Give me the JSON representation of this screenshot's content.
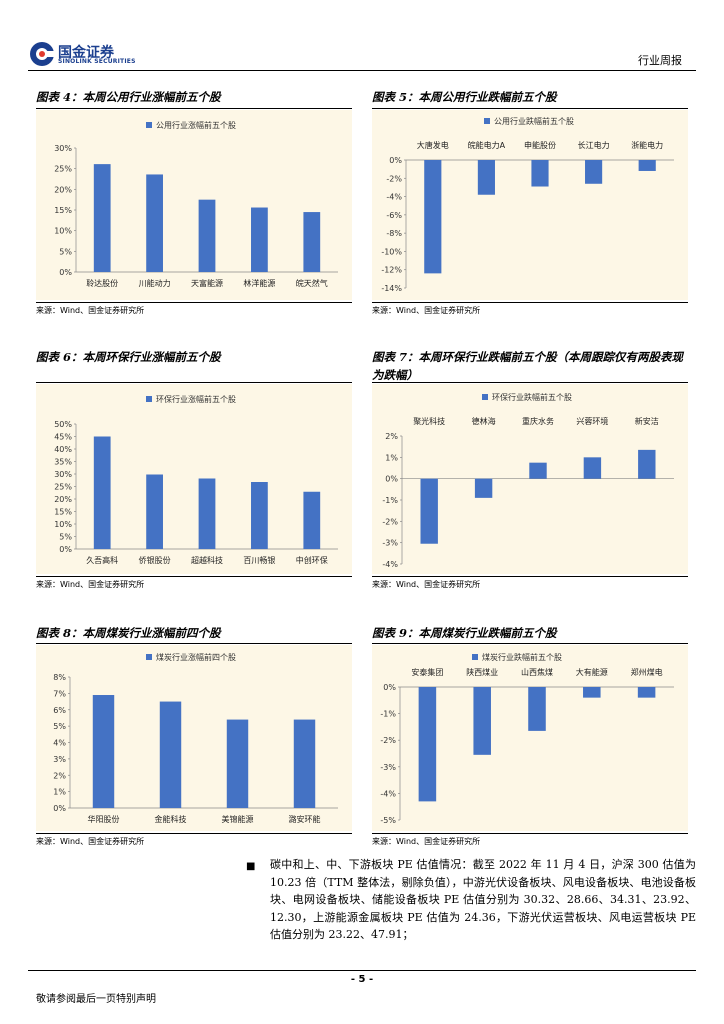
{
  "header": {
    "brand_cn": "国金证券",
    "brand_en": "SINOLINK SECURITIES",
    "doc_type": "行业周报"
  },
  "figures": [
    {
      "title": "图表 4：本周公用行业涨幅前五个股",
      "source": "来源：Wind、国金证券研究所"
    },
    {
      "title": "图表 5：本周公用行业跌幅前五个股",
      "source": "来源：Wind、国金证券研究所"
    },
    {
      "title": "图表 6：本周环保行业涨幅前五个股",
      "source": "来源：Wind、国金证券研究所"
    },
    {
      "title": "图表 7：本周环保行业跌幅前五个股（本周跟踪仅有两股表现为跌幅）",
      "source": "来源：Wind、国金证券研究所"
    },
    {
      "title": "图表 8：本周煤炭行业涨幅前四个股",
      "source": "来源：Wind、国金证券研究所"
    },
    {
      "title": "图表 9：本周煤炭行业跌幅前五个股",
      "source": "来源：Wind、国金证券研究所"
    }
  ],
  "chart_data": [
    {
      "type": "bar",
      "legend": "公用行业涨幅前五个股",
      "categories": [
        "聆达股份",
        "川能动力",
        "天富能源",
        "林洋能源",
        "皖天然气"
      ],
      "values": [
        26.1,
        23.6,
        17.5,
        15.6,
        14.5
      ],
      "ylim": [
        0,
        30
      ],
      "ticks": [
        0,
        5,
        10,
        15,
        20,
        25,
        30
      ],
      "tick_labels": [
        "0%",
        "5%",
        "10%",
        "15%",
        "20%",
        "25%",
        "30%"
      ],
      "color": "#4472c4"
    },
    {
      "type": "bar",
      "legend": "公用行业跌幅前五个股",
      "categories": [
        "大唐发电",
        "皖能电力A",
        "申能股份",
        "长江电力",
        "浙能电力"
      ],
      "values": [
        -12.4,
        -3.8,
        -2.9,
        -2.6,
        -1.2
      ],
      "ylim": [
        -14,
        0
      ],
      "ticks": [
        0,
        -2,
        -4,
        -6,
        -8,
        -10,
        -12,
        -14
      ],
      "tick_labels": [
        "0%",
        "-2%",
        "-4%",
        "-6%",
        "-8%",
        "-10%",
        "-12%",
        "-14%"
      ],
      "color": "#4472c4"
    },
    {
      "type": "bar",
      "legend": "环保行业涨幅前五个股",
      "categories": [
        "久吾高科",
        "侨银股份",
        "超越科技",
        "百川畅银",
        "中创环保"
      ],
      "values": [
        45.0,
        29.8,
        28.2,
        26.8,
        22.9
      ],
      "ylim": [
        0,
        50
      ],
      "ticks": [
        0,
        5,
        10,
        15,
        20,
        25,
        30,
        35,
        40,
        45,
        50
      ],
      "tick_labels": [
        "0%",
        "5%",
        "10%",
        "15%",
        "20%",
        "25%",
        "30%",
        "35%",
        "40%",
        "45%",
        "50%"
      ],
      "color": "#4472c4"
    },
    {
      "type": "bar",
      "legend": "环保行业跌幅前五个股",
      "categories": [
        "聚光科技",
        "德林海",
        "重庆水务",
        "兴蓉环境",
        "新安洁"
      ],
      "values": [
        -3.05,
        -0.9,
        0.75,
        1.0,
        1.35
      ],
      "ylim": [
        -4,
        2
      ],
      "ticks": [
        2,
        1,
        0,
        -1,
        -2,
        -3,
        -4
      ],
      "tick_labels": [
        "2%",
        "1%",
        "0%",
        "-1%",
        "-2%",
        "-3%",
        "-4%"
      ],
      "color": "#4472c4"
    },
    {
      "type": "bar",
      "legend": "煤炭行业涨幅前四个股",
      "categories": [
        "华阳股份",
        "金能科技",
        "美锦能源",
        "潞安环能"
      ],
      "values": [
        6.9,
        6.5,
        5.4,
        5.4
      ],
      "ylim": [
        0,
        8
      ],
      "ticks": [
        0,
        1,
        2,
        3,
        4,
        5,
        6,
        7,
        8
      ],
      "tick_labels": [
        "0%",
        "1%",
        "2%",
        "3%",
        "4%",
        "5%",
        "6%",
        "7%",
        "8%"
      ],
      "color": "#4472c4"
    },
    {
      "type": "bar",
      "legend": "煤炭行业跌幅前五个股",
      "categories": [
        "安泰集团",
        "陕西煤业",
        "山西焦煤",
        "大有能源",
        "郑州煤电"
      ],
      "values": [
        -4.3,
        -2.55,
        -1.65,
        -0.4,
        -0.4
      ],
      "ylim": [
        -5,
        0
      ],
      "ticks": [
        0,
        -1,
        -2,
        -3,
        -4,
        -5
      ],
      "tick_labels": [
        "0%",
        "-1%",
        "-2%",
        "-3%",
        "-4%",
        "-5%"
      ],
      "color": "#4472c4"
    }
  ],
  "body": {
    "bullet": "■",
    "text": "碳中和上、中、下游板块 PE 估值情况：截至 2022 年 11 月 4 日，沪深 300 估值为 10.23 倍（TTM 整体法，剔除负值），中游光伏设备板块、风电设备板块、电池设备板块、电网设备板块、储能设备板块 PE 估值分别为 30.32、28.66、34.31、23.92、12.30，上游能源金属板块 PE 估值为 24.36，下游光伏运营板块、风电运营板块 PE 估值分别为 23.22、47.91；"
  },
  "footer": {
    "page_number": "- 5 -",
    "disclaimer": "敬请参阅最后一页特别声明"
  }
}
